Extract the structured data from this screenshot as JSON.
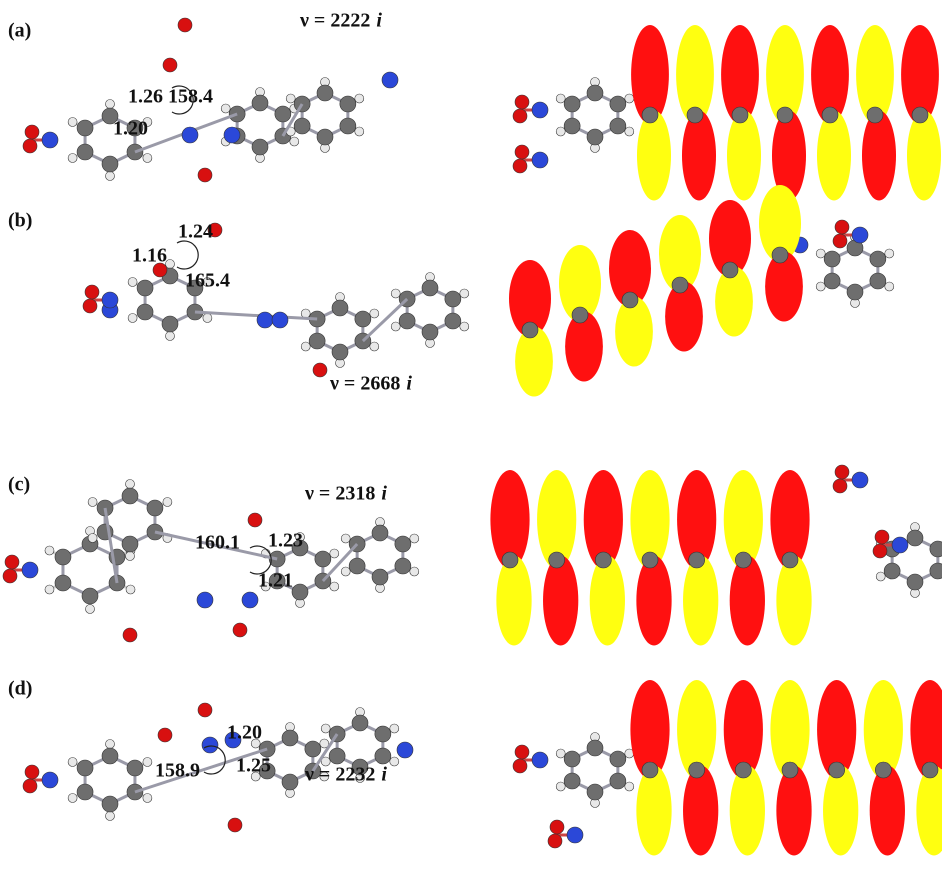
{
  "panels": [
    {
      "label": "(a)",
      "frequency": "ν = 2222",
      "unit": "i",
      "annotations": [
        "1.26",
        "158.4",
        "1.20"
      ]
    },
    {
      "label": "(b)",
      "frequency": "ν = 2668",
      "unit": "i",
      "annotations": [
        "1.24",
        "1.16",
        "165.4"
      ]
    },
    {
      "label": "(c)",
      "frequency": "ν = 2318",
      "unit": "i",
      "annotations": [
        "160.1",
        "1.23",
        "1.21"
      ]
    },
    {
      "label": "(d)",
      "frequency": "ν = 2232",
      "unit": "i",
      "annotations": [
        "1.20",
        "158.9",
        "1.25"
      ]
    }
  ]
}
